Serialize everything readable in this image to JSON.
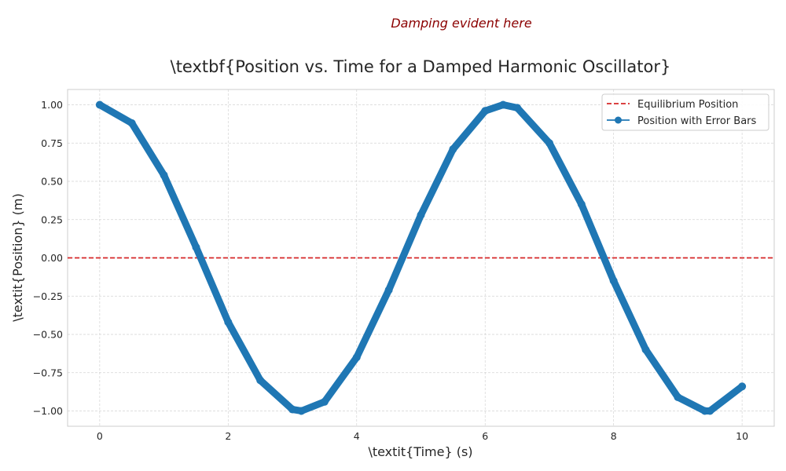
{
  "chart_data": {
    "type": "line",
    "title": "\\textbf{Position vs. Time for a Damped Harmonic Oscillator}",
    "xlabel": "\\textit{Time} (s)",
    "ylabel": "\\textit{Position} (m)",
    "xlim": [
      -0.5,
      10.5
    ],
    "ylim": [
      -1.1,
      1.1
    ],
    "xticks": [
      0,
      2,
      4,
      6,
      8,
      10
    ],
    "xtick_labels": [
      "0",
      "2",
      "4",
      "6",
      "8",
      "10"
    ],
    "yticks": [
      1.0,
      0.75,
      0.5,
      0.25,
      0.0,
      -0.25,
      -0.5,
      -0.75,
      -1.0
    ],
    "ytick_labels": [
      "1.00",
      "0.75",
      "0.50",
      "0.25",
      "0.00",
      "−0.25",
      "−0.50",
      "−0.75",
      "−1.00"
    ],
    "grid": true,
    "legend_position": "top-right",
    "annotation": "Damping evident here",
    "colors": {
      "series": "#1f77b4",
      "equilibrium": "#d62728",
      "annotation": "#8b0000"
    },
    "series": [
      {
        "name": "Equilibrium Position",
        "style": "dashed",
        "y": 0.0
      },
      {
        "name": "Position with Error Bars",
        "style": "line-with-markers",
        "x": [
          0.0,
          0.5,
          1.0,
          1.5,
          2.0,
          2.5,
          3.0,
          3.14,
          3.5,
          4.0,
          4.5,
          5.0,
          5.5,
          6.0,
          6.28,
          6.5,
          7.0,
          7.5,
          8.0,
          8.5,
          9.0,
          9.42,
          9.5,
          10.0
        ],
        "y": [
          1.0,
          0.88,
          0.54,
          0.07,
          -0.42,
          -0.8,
          -0.99,
          -1.0,
          -0.94,
          -0.65,
          -0.21,
          0.28,
          0.71,
          0.96,
          1.0,
          0.98,
          0.75,
          0.35,
          -0.15,
          -0.6,
          -0.91,
          -1.0,
          -1.0,
          -0.84
        ]
      }
    ]
  }
}
